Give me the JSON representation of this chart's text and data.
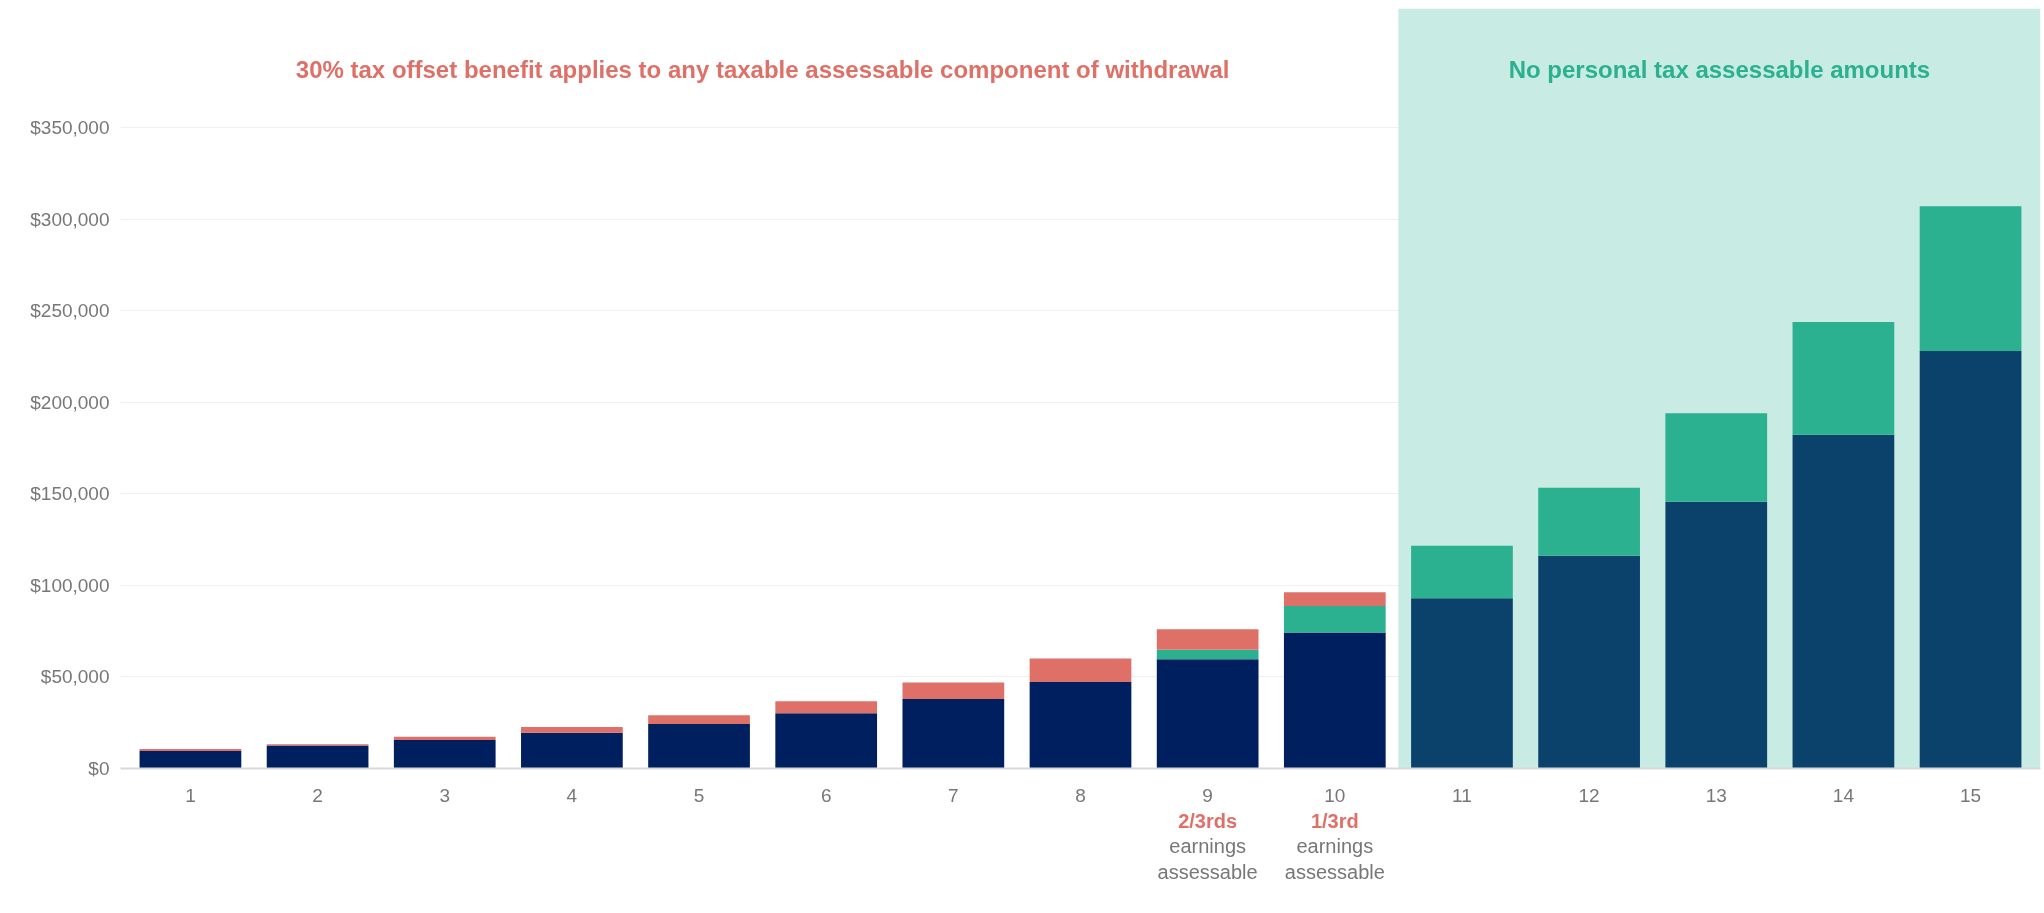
{
  "chart_data": {
    "type": "bar",
    "stacked": true,
    "title": "30% tax offset benefit applies to any taxable assessable component of withdrawal",
    "categories": [
      "1",
      "2",
      "3",
      "4",
      "5",
      "6",
      "7",
      "8",
      "9",
      "10",
      "11",
      "12",
      "13",
      "14",
      "15"
    ],
    "series": [
      {
        "colors": [
          "#001f5f",
          "#001f5f",
          "#001f5f",
          "#001f5f",
          "#001f5f",
          "#001f5f",
          "#001f5f",
          "#001f5f",
          "#001f5f",
          "#001f5f",
          "#0b426b",
          "#0b426b",
          "#0b426b",
          "#0b426b",
          "#0b426b"
        ],
        "values": [
          9600,
          12500,
          15600,
          19500,
          24300,
          30200,
          37900,
          47300,
          59600,
          74300,
          92900,
          116200,
          145600,
          182200,
          228000
        ]
      },
      {
        "color": "#2bb090",
        "values": [
          null,
          null,
          null,
          null,
          null,
          null,
          null,
          null,
          5300,
          14500,
          28700,
          37100,
          48400,
          61600,
          79000
        ]
      },
      {
        "color": "#df7068",
        "values": [
          1000,
          700,
          1700,
          3100,
          4800,
          6500,
          9100,
          12800,
          11100,
          7500,
          null,
          null,
          null,
          null,
          null
        ]
      }
    ],
    "ylim": [
      0,
      415000
    ],
    "yticks": [
      {
        "value": 0,
        "label": "$0"
      },
      {
        "value": 50000,
        "label": "$50,000"
      },
      {
        "value": 100000,
        "label": "$100,000"
      },
      {
        "value": 150000,
        "label": "$150,000"
      },
      {
        "value": 200000,
        "label": "$200,000"
      },
      {
        "value": 250000,
        "label": "$250,000"
      },
      {
        "value": 300000,
        "label": "$300,000"
      },
      {
        "value": 350000,
        "label": "$350,000"
      }
    ],
    "grid": "y",
    "bands": [
      {
        "axis": "x",
        "from": "11",
        "to": "15",
        "label": "No personal tax assessable amounts",
        "color": "#c8ebe3"
      }
    ],
    "annotations": [
      "2/3rds earnings assessable",
      "1/3rd earnings assessable"
    ]
  }
}
